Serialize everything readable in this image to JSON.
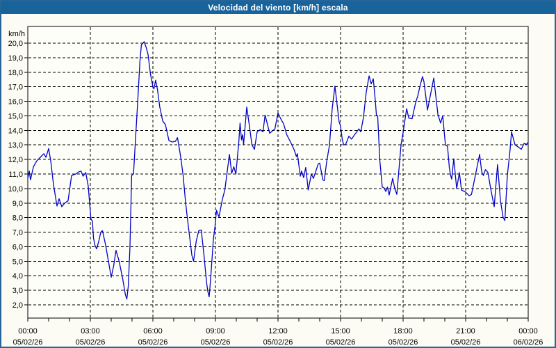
{
  "window": {
    "title": "Velocidad del viento [km/h] escala"
  },
  "chart_data": {
    "type": "line",
    "title": "Velocidad del viento [km/h] escala",
    "xlabel": "",
    "ylabel": "km/h",
    "ylim": [
      1.1,
      21.1
    ],
    "x_hours_range": [
      0,
      24
    ],
    "grid": "dashed-black",
    "legend": "none",
    "line_color": "#0202c4",
    "plot_bg": "#fefef9",
    "frame_color": "#000000",
    "titlebar_color": "#19639b",
    "window_bg": "#fcfcf5",
    "ytick_values": [
      2,
      3,
      4,
      5,
      6,
      7,
      8,
      9,
      10,
      11,
      12,
      13,
      14,
      15,
      16,
      17,
      18,
      19,
      20
    ],
    "ytick_labels": [
      "2,0",
      "3,0",
      "4,0",
      "5,0",
      "6,0",
      "7,0",
      "8,0",
      "9,0",
      "10,0",
      "11,0",
      "12,0",
      "13,0",
      "14,0",
      "15,0",
      "16,0",
      "17,0",
      "18,0",
      "19,0",
      "20,0"
    ],
    "xticks": [
      {
        "hour": 0,
        "time": "00:00",
        "date": "05/02/26"
      },
      {
        "hour": 3,
        "time": "03:00",
        "date": "05/02/26"
      },
      {
        "hour": 6,
        "time": "06:00",
        "date": "05/02/26"
      },
      {
        "hour": 9,
        "time": "09:00",
        "date": "05/02/26"
      },
      {
        "hour": 12,
        "time": "12:00",
        "date": "05/02/26"
      },
      {
        "hour": 15,
        "time": "15:00",
        "date": "05/02/26"
      },
      {
        "hour": 18,
        "time": "18:00",
        "date": "05/02/26"
      },
      {
        "hour": 21,
        "time": "21:00",
        "date": "05/02/26"
      },
      {
        "hour": 24,
        "time": "00:00",
        "date": "06/02/26"
      }
    ],
    "series": [
      {
        "name": "Velocidad del viento",
        "points": [
          [
            0,
            10.7
          ],
          [
            0.07,
            11.2
          ],
          [
            0.13,
            10.6
          ],
          [
            0.27,
            11.5
          ],
          [
            0.43,
            11.9
          ],
          [
            0.6,
            12.15
          ],
          [
            0.77,
            12.4
          ],
          [
            0.87,
            12.15
          ],
          [
            1,
            12.75
          ],
          [
            1.1,
            11.9
          ],
          [
            1.23,
            10.3
          ],
          [
            1.4,
            8.8
          ],
          [
            1.5,
            9.3
          ],
          [
            1.63,
            8.75
          ],
          [
            1.77,
            9.0
          ],
          [
            1.93,
            9.15
          ],
          [
            2.1,
            10.9
          ],
          [
            2.3,
            11.0
          ],
          [
            2.45,
            11.15
          ],
          [
            2.55,
            11.2
          ],
          [
            2.65,
            10.85
          ],
          [
            2.78,
            11.1
          ],
          [
            2.9,
            10.15
          ],
          [
            2.97,
            8.9
          ],
          [
            3.03,
            7.9
          ],
          [
            3.1,
            7.75
          ],
          [
            3.15,
            6.6
          ],
          [
            3.22,
            6.1
          ],
          [
            3.3,
            5.85
          ],
          [
            3.4,
            6.35
          ],
          [
            3.5,
            7.0
          ],
          [
            3.58,
            7.1
          ],
          [
            3.72,
            6.2
          ],
          [
            3.88,
            4.9
          ],
          [
            4,
            3.9
          ],
          [
            4.12,
            4.7
          ],
          [
            4.23,
            5.75
          ],
          [
            4.38,
            5.0
          ],
          [
            4.55,
            3.8
          ],
          [
            4.68,
            2.7
          ],
          [
            4.75,
            2.4
          ],
          [
            4.82,
            3.3
          ],
          [
            4.9,
            6.0
          ],
          [
            4.98,
            10.9
          ],
          [
            5.07,
            11.0
          ],
          [
            5.17,
            13.5
          ],
          [
            5.28,
            16.2
          ],
          [
            5.38,
            18.8
          ],
          [
            5.45,
            19.9
          ],
          [
            5.53,
            20.0
          ],
          [
            5.58,
            20.1
          ],
          [
            5.68,
            19.7
          ],
          [
            5.77,
            19.2
          ],
          [
            5.88,
            17.9
          ],
          [
            6,
            17.0
          ],
          [
            6.05,
            16.85
          ],
          [
            6.13,
            17.45
          ],
          [
            6.22,
            16.8
          ],
          [
            6.33,
            15.6
          ],
          [
            6.47,
            14.65
          ],
          [
            6.6,
            14.4
          ],
          [
            6.77,
            13.3
          ],
          [
            6.93,
            13.2
          ],
          [
            7.08,
            13.25
          ],
          [
            7.18,
            13.5
          ],
          [
            7.33,
            12.2
          ],
          [
            7.45,
            10.9
          ],
          [
            7.57,
            9.0
          ],
          [
            7.7,
            7.4
          ],
          [
            7.87,
            5.4
          ],
          [
            7.95,
            5.0
          ],
          [
            8.08,
            6.4
          ],
          [
            8.2,
            7.1
          ],
          [
            8.32,
            7.15
          ],
          [
            8.45,
            5.4
          ],
          [
            8.57,
            3.6
          ],
          [
            8.63,
            2.95
          ],
          [
            8.7,
            2.55
          ],
          [
            8.78,
            4.0
          ],
          [
            8.9,
            6.5
          ],
          [
            8.98,
            7.4
          ],
          [
            9.05,
            8.5
          ],
          [
            9.17,
            8.05
          ],
          [
            9.33,
            9.25
          ],
          [
            9.45,
            9.9
          ],
          [
            9.67,
            12.35
          ],
          [
            9.78,
            11.05
          ],
          [
            9.88,
            11.5
          ],
          [
            9.98,
            11.0
          ],
          [
            10.12,
            13.2
          ],
          [
            10.18,
            14.5
          ],
          [
            10.25,
            13.35
          ],
          [
            10.3,
            13.7
          ],
          [
            10.35,
            13.05
          ],
          [
            10.5,
            15.6
          ],
          [
            10.63,
            14.3
          ],
          [
            10.75,
            13.0
          ],
          [
            10.87,
            12.7
          ],
          [
            11,
            13.9
          ],
          [
            11.15,
            14.05
          ],
          [
            11.28,
            13.9
          ],
          [
            11.38,
            15.05
          ],
          [
            11.48,
            14.5
          ],
          [
            11.6,
            13.8
          ],
          [
            11.72,
            13.95
          ],
          [
            11.85,
            14.1
          ],
          [
            12,
            15.2
          ],
          [
            12.13,
            14.8
          ],
          [
            12.27,
            14.45
          ],
          [
            12.42,
            13.7
          ],
          [
            12.6,
            13.2
          ],
          [
            12.78,
            12.65
          ],
          [
            12.88,
            12.2
          ],
          [
            12.93,
            12.4
          ],
          [
            13.07,
            10.85
          ],
          [
            13.13,
            11.2
          ],
          [
            13.23,
            10.75
          ],
          [
            13.33,
            11.45
          ],
          [
            13.45,
            9.9
          ],
          [
            13.6,
            11.0
          ],
          [
            13.7,
            10.7
          ],
          [
            13.93,
            11.7
          ],
          [
            14,
            11.75
          ],
          [
            14.15,
            10.6
          ],
          [
            14.22,
            10.55
          ],
          [
            14.33,
            11.8
          ],
          [
            14.47,
            13.0
          ],
          [
            14.6,
            15.5
          ],
          [
            14.73,
            17.05
          ],
          [
            14.93,
            14.6
          ],
          [
            15,
            14.3
          ],
          [
            15.08,
            13.4
          ],
          [
            15.15,
            13.0
          ],
          [
            15.25,
            13.05
          ],
          [
            15.4,
            13.6
          ],
          [
            15.53,
            13.4
          ],
          [
            15.67,
            13.7
          ],
          [
            15.78,
            13.9
          ],
          [
            15.88,
            14.1
          ],
          [
            15.97,
            13.9
          ],
          [
            16.1,
            14.9
          ],
          [
            16.23,
            16.6
          ],
          [
            16.37,
            17.75
          ],
          [
            16.47,
            17.2
          ],
          [
            16.57,
            17.55
          ],
          [
            16.67,
            16.0
          ],
          [
            16.72,
            15.05
          ],
          [
            16.78,
            15.0
          ],
          [
            16.88,
            12.0
          ],
          [
            17,
            10.1
          ],
          [
            17.08,
            10.05
          ],
          [
            17.17,
            9.8
          ],
          [
            17.25,
            10.1
          ],
          [
            17.33,
            9.55
          ],
          [
            17.5,
            10.7
          ],
          [
            17.6,
            10.0
          ],
          [
            17.7,
            9.6
          ],
          [
            17.9,
            13.0
          ],
          [
            18,
            13.85
          ],
          [
            18.17,
            15.5
          ],
          [
            18.27,
            14.85
          ],
          [
            18.43,
            14.8
          ],
          [
            18.6,
            15.9
          ],
          [
            18.7,
            16.35
          ],
          [
            18.82,
            17.1
          ],
          [
            18.93,
            17.7
          ],
          [
            19,
            17.35
          ],
          [
            19.17,
            15.4
          ],
          [
            19.47,
            17.6
          ],
          [
            19.67,
            15.1
          ],
          [
            19.8,
            14.5
          ],
          [
            19.9,
            15.0
          ],
          [
            20.03,
            13.0
          ],
          [
            20.13,
            12.9
          ],
          [
            20.22,
            11.4
          ],
          [
            20.28,
            10.9
          ],
          [
            20.33,
            10.65
          ],
          [
            20.43,
            12.05
          ],
          [
            20.57,
            10.0
          ],
          [
            20.7,
            11.1
          ],
          [
            20.8,
            9.9
          ],
          [
            21,
            9.75
          ],
          [
            21.17,
            9.5
          ],
          [
            21.28,
            9.6
          ],
          [
            21.5,
            11.15
          ],
          [
            21.67,
            12.35
          ],
          [
            21.77,
            11.15
          ],
          [
            21.85,
            10.9
          ],
          [
            21.95,
            11.3
          ],
          [
            22.07,
            11.1
          ],
          [
            22.2,
            10.0
          ],
          [
            22.37,
            8.75
          ],
          [
            22.53,
            11.65
          ],
          [
            22.67,
            9.15
          ],
          [
            22.8,
            8.0
          ],
          [
            22.88,
            7.8
          ],
          [
            23,
            10.9
          ],
          [
            23.13,
            12.65
          ],
          [
            23.2,
            13.9
          ],
          [
            23.37,
            13.0
          ],
          [
            23.48,
            12.9
          ],
          [
            23.67,
            12.7
          ],
          [
            23.8,
            13.1
          ],
          [
            23.93,
            13.05
          ],
          [
            24,
            13.2
          ]
        ]
      }
    ]
  }
}
